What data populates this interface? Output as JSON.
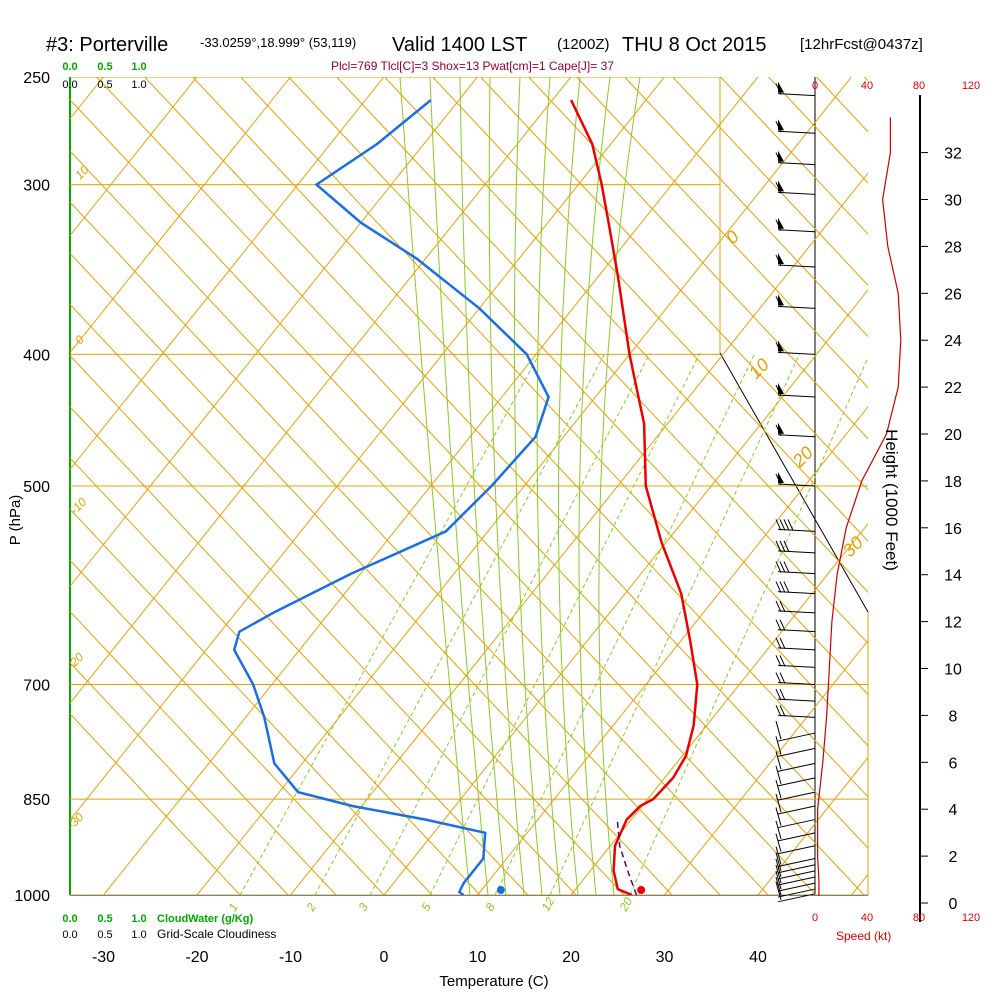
{
  "header": {
    "title_station": "#3: Porterville",
    "title_coords": "-33.0259°,18.999° (53,119)",
    "title_valid": "Valid 1400 LST",
    "title_utc": "(1200Z)",
    "title_date": "THU 8 Oct 2015",
    "title_fcst": "[12hrFcst@0437z]",
    "params": "Plcl=769 Tlcl[C]=3 Shox=13 Pwat[cm]=1 Cape[J]= 37"
  },
  "labels": {
    "p_axis": "P (hPa)",
    "t_axis": "Temperature (C)",
    "height_axis": "Height (1000 Feet)",
    "cloudwater": "CloudWater (g/Kg)",
    "cloudiness": "Grid-Scale Cloudiness",
    "speed": "Speed (kt)"
  },
  "colors": {
    "temperature": "#ee0000",
    "dewpoint": "#1a6ee8",
    "isotherm": "#e8a000",
    "mixing_ratio": "#88cc22",
    "moist_adiabat": "#88cc22",
    "wind_speed": "#cc0000",
    "cloudwater": "#00aa00"
  },
  "chart_data": {
    "type": "skew-t",
    "pressure_levels": [
      1000,
      850,
      700,
      500,
      400,
      300,
      250
    ],
    "pressure_tick_labels": [
      "1000",
      "850",
      "700",
      "500",
      "400",
      "300",
      "250"
    ],
    "temperature_ticks": [
      "-30",
      "-20",
      "-10",
      "0",
      "10",
      "20",
      "30",
      "40"
    ],
    "height_ticks": [
      "0",
      "2",
      "4",
      "6",
      "8",
      "10",
      "12",
      "14",
      "16",
      "18",
      "20",
      "22",
      "24",
      "26",
      "28",
      "30",
      "32"
    ],
    "speed_ticks_top": [
      "0",
      "40",
      "80",
      "120"
    ],
    "speed_ticks_bottom": [
      "0",
      "40",
      "80",
      "120"
    ],
    "cloud_ticks": [
      "0.0",
      "0.5",
      "1.0"
    ],
    "isotherm_labels": [
      "10",
      "0",
      "-10",
      "-20",
      "-30",
      "0",
      "10",
      "20",
      "30"
    ],
    "mixing_ratio_labels": [
      "1",
      "2",
      "3",
      "5",
      "8",
      "12",
      "20"
    ],
    "temperature_profile": [
      {
        "p": 1000,
        "t": 26.5
      },
      {
        "p": 990,
        "t": 24.5
      },
      {
        "p": 960,
        "t": 22.5
      },
      {
        "p": 920,
        "t": 20.5
      },
      {
        "p": 880,
        "t": 19.5
      },
      {
        "p": 860,
        "t": 19.8
      },
      {
        "p": 850,
        "t": 20.6
      },
      {
        "p": 820,
        "t": 20.9
      },
      {
        "p": 790,
        "t": 20.4
      },
      {
        "p": 750,
        "t": 18.6
      },
      {
        "p": 700,
        "t": 15.5
      },
      {
        "p": 650,
        "t": 11.0
      },
      {
        "p": 600,
        "t": 6.0
      },
      {
        "p": 550,
        "t": -0.5
      },
      {
        "p": 500,
        "t": -7.0
      },
      {
        "p": 450,
        "t": -12.5
      },
      {
        "p": 400,
        "t": -20.0
      },
      {
        "p": 350,
        "t": -28.0
      },
      {
        "p": 320,
        "t": -33.5
      },
      {
        "p": 300,
        "t": -37.5
      },
      {
        "p": 280,
        "t": -42.0
      },
      {
        "p": 260,
        "t": -48.0
      }
    ],
    "dewpoint_profile": [
      {
        "p": 1000,
        "t": 8.5
      },
      {
        "p": 995,
        "t": 7.8
      },
      {
        "p": 980,
        "t": 7.5
      },
      {
        "p": 940,
        "t": 7.5
      },
      {
        "p": 900,
        "t": 5.5
      },
      {
        "p": 880,
        "t": -2.0
      },
      {
        "p": 860,
        "t": -11.0
      },
      {
        "p": 840,
        "t": -18.0
      },
      {
        "p": 800,
        "t": -23.0
      },
      {
        "p": 740,
        "t": -28.0
      },
      {
        "p": 700,
        "t": -32.0
      },
      {
        "p": 660,
        "t": -37.0
      },
      {
        "p": 640,
        "t": -38.0
      },
      {
        "p": 620,
        "t": -36.0
      },
      {
        "p": 580,
        "t": -31.0
      },
      {
        "p": 540,
        "t": -24.5
      },
      {
        "p": 500,
        "t": -23.5
      },
      {
        "p": 460,
        "t": -23.0
      },
      {
        "p": 430,
        "t": -25.0
      },
      {
        "p": 400,
        "t": -31.0
      },
      {
        "p": 370,
        "t": -40.0
      },
      {
        "p": 340,
        "t": -51.0
      },
      {
        "p": 320,
        "t": -60.0
      },
      {
        "p": 300,
        "t": -68.0
      },
      {
        "p": 280,
        "t": -65.0
      },
      {
        "p": 260,
        "t": -63.0
      }
    ],
    "surface_temperature": 27.5,
    "surface_dewpoint": 12.5,
    "parcel_path": [
      {
        "p": 1000,
        "t": 27.0
      },
      {
        "p": 960,
        "t": 24.0
      },
      {
        "p": 920,
        "t": 21.0
      },
      {
        "p": 880,
        "t": 18.5
      }
    ],
    "wind_speed_profile": [
      {
        "h": 0.3,
        "s": 3
      },
      {
        "h": 1,
        "s": 3
      },
      {
        "h": 2,
        "s": 2
      },
      {
        "h": 3,
        "s": 2
      },
      {
        "h": 4,
        "s": 2
      },
      {
        "h": 5,
        "s": 4
      },
      {
        "h": 6,
        "s": 6
      },
      {
        "h": 8,
        "s": 9
      },
      {
        "h": 10,
        "s": 11
      },
      {
        "h": 12,
        "s": 13
      },
      {
        "h": 14,
        "s": 17
      },
      {
        "h": 16,
        "s": 24
      },
      {
        "h": 18,
        "s": 36
      },
      {
        "h": 20,
        "s": 55
      },
      {
        "h": 22,
        "s": 64
      },
      {
        "h": 24,
        "s": 66
      },
      {
        "h": 26,
        "s": 64
      },
      {
        "h": 28,
        "s": 56
      },
      {
        "h": 30,
        "s": 52
      },
      {
        "h": 32,
        "s": 58
      },
      {
        "h": 33.5,
        "s": 58
      }
    ],
    "wind_barbs": [
      {
        "p": 998,
        "s": 5
      },
      {
        "p": 990,
        "s": 5
      },
      {
        "p": 980,
        "s": 5
      },
      {
        "p": 970,
        "s": 5
      },
      {
        "p": 960,
        "s": 5
      },
      {
        "p": 950,
        "s": 5
      },
      {
        "p": 940,
        "s": 5
      },
      {
        "p": 920,
        "s": 5
      },
      {
        "p": 900,
        "s": 5
      },
      {
        "p": 880,
        "s": 5
      },
      {
        "p": 860,
        "s": 5
      },
      {
        "p": 840,
        "s": 10
      },
      {
        "p": 820,
        "s": 10
      },
      {
        "p": 800,
        "s": 10
      },
      {
        "p": 780,
        "s": 10
      },
      {
        "p": 760,
        "s": 10
      },
      {
        "p": 740,
        "s": 15
      },
      {
        "p": 720,
        "s": 15
      },
      {
        "p": 700,
        "s": 15
      },
      {
        "p": 680,
        "s": 15
      },
      {
        "p": 660,
        "s": 20
      },
      {
        "p": 640,
        "s": 20
      },
      {
        "p": 620,
        "s": 20
      },
      {
        "p": 600,
        "s": 25
      },
      {
        "p": 580,
        "s": 30
      },
      {
        "p": 560,
        "s": 30
      },
      {
        "p": 540,
        "s": 35
      },
      {
        "p": 500,
        "s": 55
      },
      {
        "p": 460,
        "s": 60
      },
      {
        "p": 430,
        "s": 60
      },
      {
        "p": 400,
        "s": 60
      },
      {
        "p": 370,
        "s": 60
      },
      {
        "p": 345,
        "s": 60
      },
      {
        "p": 325,
        "s": 60
      },
      {
        "p": 305,
        "s": 55
      },
      {
        "p": 290,
        "s": 55
      },
      {
        "p": 275,
        "s": 55
      },
      {
        "p": 258,
        "s": 55
      }
    ]
  }
}
